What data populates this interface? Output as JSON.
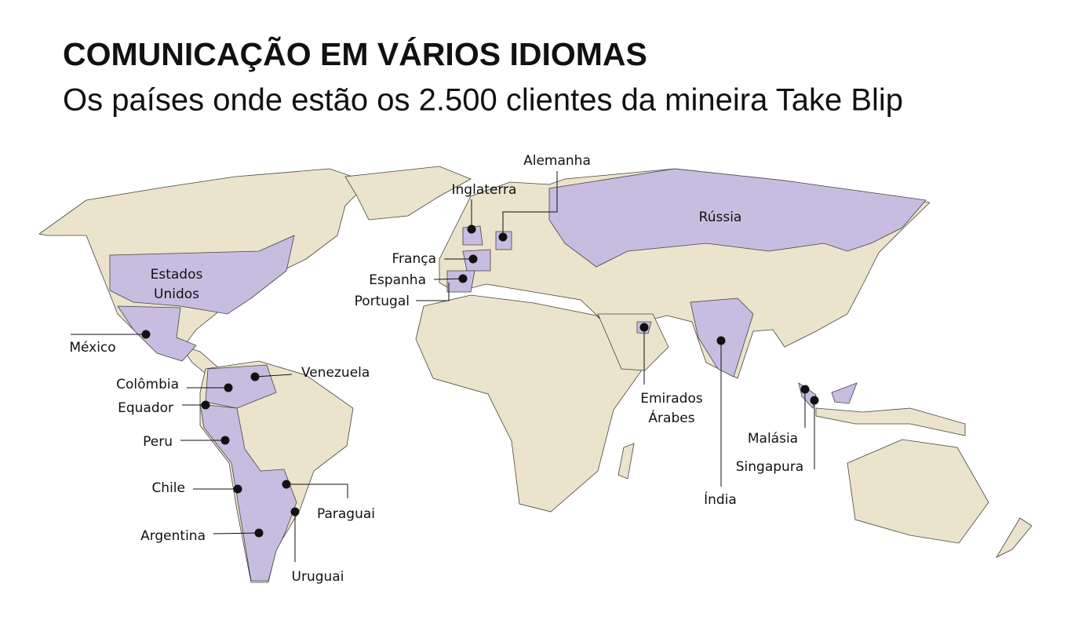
{
  "header": {
    "title": "COMUNICAÇÃO EM VÁRIOS IDIOMAS",
    "subtitle": "Os países onde estão os 2.500 clientes da mineira Take Blip"
  },
  "countries": [
    {
      "lines": [
        "Rússia"
      ]
    },
    {
      "lines": [
        "Alemanha"
      ]
    },
    {
      "lines": [
        "Inglaterra"
      ]
    },
    {
      "lines": [
        "França"
      ]
    },
    {
      "lines": [
        "Espanha"
      ]
    },
    {
      "lines": [
        "Portugal"
      ]
    },
    {
      "lines": [
        "Estados",
        "Unidos"
      ]
    },
    {
      "lines": [
        "México"
      ]
    },
    {
      "lines": [
        "Colômbia"
      ]
    },
    {
      "lines": [
        "Venezuela"
      ]
    },
    {
      "lines": [
        "Equador"
      ]
    },
    {
      "lines": [
        "Peru"
      ]
    },
    {
      "lines": [
        "Chile"
      ]
    },
    {
      "lines": [
        "Argentina"
      ]
    },
    {
      "lines": [
        "Paraguai"
      ]
    },
    {
      "lines": [
        "Uruguai"
      ]
    },
    {
      "lines": [
        "Emirados",
        "Árabes"
      ]
    },
    {
      "lines": [
        "Índia"
      ]
    },
    {
      "lines": [
        "Malásia"
      ]
    },
    {
      "lines": [
        "Singapura"
      ]
    }
  ]
}
